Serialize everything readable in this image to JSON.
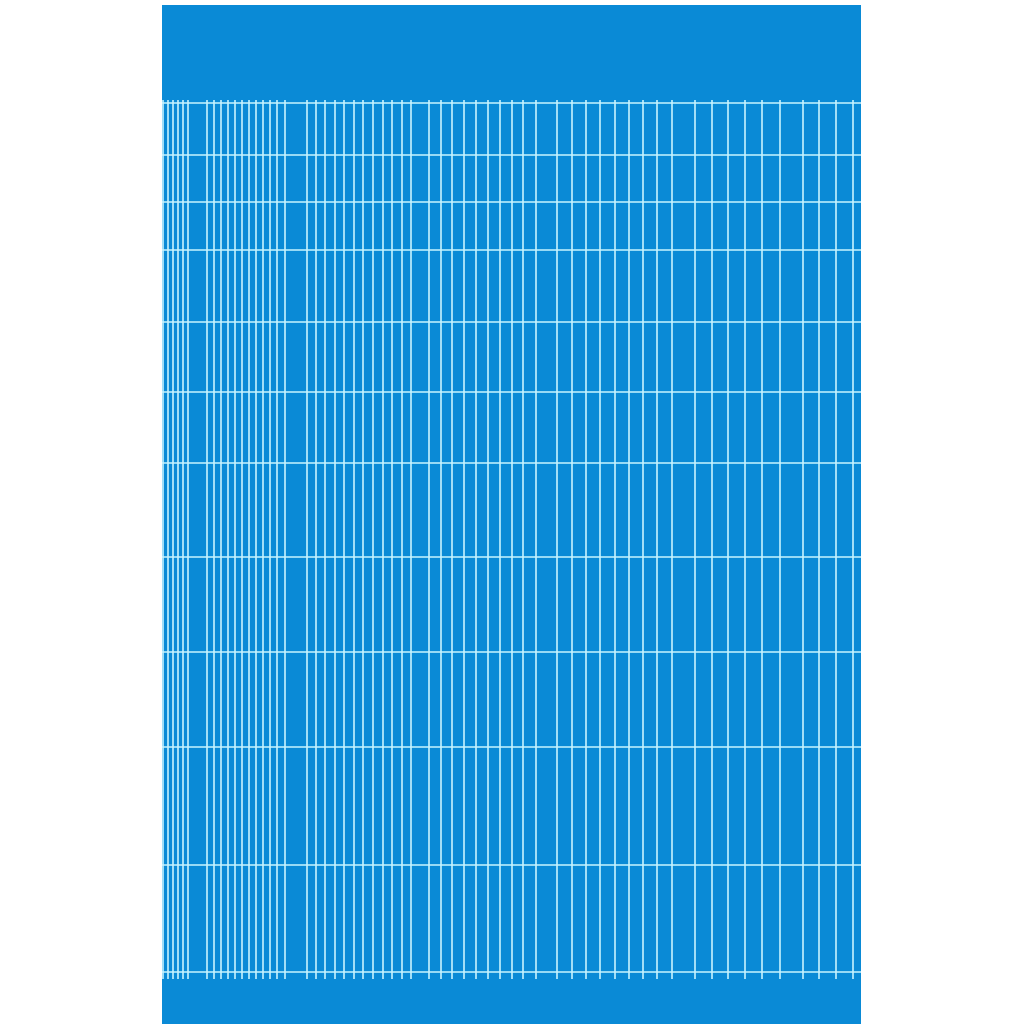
{
  "colors": {
    "paper": "#0a8ad6",
    "grid_line": "#c8f4ff",
    "background": "#ffffff"
  }
}
